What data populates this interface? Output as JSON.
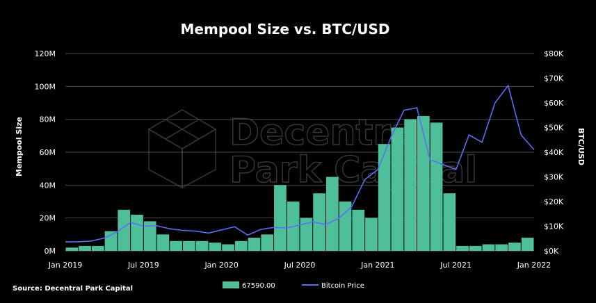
{
  "chart_data": {
    "type": "bar+line",
    "title": "Mempool Size vs. BTC/USD",
    "ylabel_left": "Mempool Size",
    "ylabel_right": "BTC/USD",
    "xlabel": "",
    "x_ticks": [
      "Jan 2019",
      "Jul 2019",
      "Jan 2020",
      "Jul 2020",
      "Jan 2021",
      "Jul 2021",
      "Jan 2022"
    ],
    "x_range": [
      "2019-01",
      "2022-01"
    ],
    "y_left": {
      "ticks": [
        "0M",
        "20M",
        "40M",
        "60M",
        "80M",
        "100M",
        "120M"
      ],
      "ylim": [
        0,
        120000000
      ]
    },
    "y_right": {
      "ticks": [
        "$0K",
        "$10K",
        "$20K",
        "$30K",
        "$40K",
        "$50K",
        "$60K",
        "$70K",
        "$80K"
      ],
      "ylim": [
        0,
        80000
      ]
    },
    "grid": true,
    "legend_position": "bottom",
    "series": [
      {
        "name": "67590.00",
        "type": "bar",
        "axis": "left",
        "color": "#4fbf9b",
        "points": [
          [
            "2019-01",
            2000000
          ],
          [
            "2019-02",
            3000000
          ],
          [
            "2019-03",
            3000000
          ],
          [
            "2019-04",
            12000000
          ],
          [
            "2019-05",
            25000000
          ],
          [
            "2019-06",
            22000000
          ],
          [
            "2019-07",
            18000000
          ],
          [
            "2019-08",
            10000000
          ],
          [
            "2019-09",
            6000000
          ],
          [
            "2019-10",
            6000000
          ],
          [
            "2019-11",
            6000000
          ],
          [
            "2019-12",
            5000000
          ],
          [
            "2020-01",
            4000000
          ],
          [
            "2020-02",
            6000000
          ],
          [
            "2020-03",
            8000000
          ],
          [
            "2020-04",
            10000000
          ],
          [
            "2020-05",
            40000000
          ],
          [
            "2020-06",
            30000000
          ],
          [
            "2020-07",
            20000000
          ],
          [
            "2020-08",
            35000000
          ],
          [
            "2020-09",
            45000000
          ],
          [
            "2020-10",
            30000000
          ],
          [
            "2020-11",
            25000000
          ],
          [
            "2020-12",
            20000000
          ],
          [
            "2021-01",
            65000000
          ],
          [
            "2021-02",
            75000000
          ],
          [
            "2021-03",
            80000000
          ],
          [
            "2021-04",
            82000000
          ],
          [
            "2021-05",
            78000000
          ],
          [
            "2021-06",
            35000000
          ],
          [
            "2021-07",
            3000000
          ],
          [
            "2021-08",
            3000000
          ],
          [
            "2021-09",
            4000000
          ],
          [
            "2021-10",
            4000000
          ],
          [
            "2021-11",
            5000000
          ],
          [
            "2021-12",
            8000000
          ]
        ]
      },
      {
        "name": "Bitcoin Price",
        "type": "line",
        "axis": "right",
        "color": "#5b6df5",
        "points": [
          [
            "2019-01",
            3600
          ],
          [
            "2019-02",
            3700
          ],
          [
            "2019-03",
            4000
          ],
          [
            "2019-04",
            5200
          ],
          [
            "2019-05",
            7800
          ],
          [
            "2019-06",
            11500
          ],
          [
            "2019-07",
            10000
          ],
          [
            "2019-08",
            10200
          ],
          [
            "2019-09",
            9000
          ],
          [
            "2019-10",
            8300
          ],
          [
            "2019-11",
            8000
          ],
          [
            "2019-12",
            7200
          ],
          [
            "2020-01",
            8500
          ],
          [
            "2020-02",
            9800
          ],
          [
            "2020-03",
            6400
          ],
          [
            "2020-04",
            8700
          ],
          [
            "2020-05",
            9500
          ],
          [
            "2020-06",
            9300
          ],
          [
            "2020-07",
            10500
          ],
          [
            "2020-08",
            11700
          ],
          [
            "2020-09",
            10700
          ],
          [
            "2020-10",
            13200
          ],
          [
            "2020-11",
            18000
          ],
          [
            "2020-12",
            28900
          ],
          [
            "2021-01",
            33000
          ],
          [
            "2021-02",
            46000
          ],
          [
            "2021-03",
            57000
          ],
          [
            "2021-04",
            58000
          ],
          [
            "2021-05",
            37000
          ],
          [
            "2021-06",
            35000
          ],
          [
            "2021-07",
            33000
          ],
          [
            "2021-08",
            47000
          ],
          [
            "2021-09",
            44000
          ],
          [
            "2021-10",
            60000
          ],
          [
            "2021-11",
            67000
          ],
          [
            "2021-12",
            47000
          ],
          [
            "2022-01",
            41000
          ]
        ]
      }
    ],
    "source": "Source: Decentral Park Capital",
    "watermark": "Decentral Park Capital"
  }
}
